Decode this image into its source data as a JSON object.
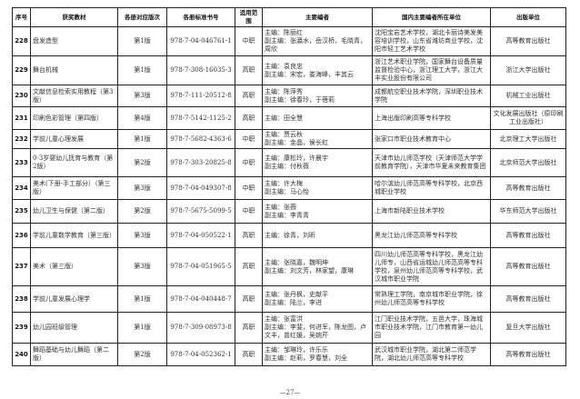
{
  "headers": [
    "序号",
    "获奖教材",
    "各册对应版次",
    "各册标准书号",
    "适用范围",
    "主要编者",
    "国内主要编者所在单位",
    "出版单位"
  ],
  "rows": [
    {
      "no": "228",
      "title": "盘发造型",
      "edition": "第1版",
      "isbn": "978-7-04-046761-1",
      "scope": "中职",
      "editors": [
        "主编：陈丽红",
        "副主编：张瀛水，岳汉桥，毛晓青，周欣"
      ],
      "units": "沈阳宝岩艺术学校，湖北卡丽诗美发美容培训学校，山东省潍坊商业学校，沈阳市轻工艺术学校",
      "publisher": "高等教育出版社"
    },
    {
      "no": "229",
      "title": "舞台机械",
      "edition": "第1版",
      "isbn": "978-7-308-16035-3",
      "scope": "高职",
      "editors": [
        "主编：袁良忠",
        "副主编：宋宏，娄海峰，丰其云"
      ],
      "units": "浙江艺术职业学院，国家舞台设备质量监督检验中心，浙江理工大学，浙江大丰实业股份有限公司",
      "publisher": "浙江大学出版社"
    },
    {
      "no": "230",
      "title": "文献信息检索实用教程（第3版）",
      "edition": "第3版",
      "isbn": "978-7-111-20512-8",
      "scope": "高职",
      "editors": [
        "主编：陈萍秀",
        "副主编：徐春玲，于蓓莉"
      ],
      "units": "成都航空职业技术学院，深圳职业技术学院",
      "publisher": "机械工业出版社"
    },
    {
      "no": "231",
      "title": "印刷色彩管理（第四版）",
      "edition": "第4版",
      "isbn": "978-7-5142-1125-2",
      "scope": "高职",
      "editors": [
        "主编：田全慧"
      ],
      "units": "上海出版印刷高等专科学校",
      "publisher": "文化发展出版社（原印刷工业出版社）"
    },
    {
      "no": "232",
      "title": "学前儿童心理发展",
      "edition": "第1版",
      "isbn": "978-7-5682-4363-6",
      "scope": "中职",
      "editors": [
        "主编：贾云秋",
        "副主编：金晶，侯长虹"
      ],
      "units": "张家口市职业技术教育中心",
      "publisher": "北京理工大学出版社"
    },
    {
      "no": "233",
      "title": "0-3岁婴幼儿抚育与教育（第2版）",
      "edition": "第2版",
      "isbn": "978-7-303-20825-8",
      "scope": "中职",
      "editors": [
        "主编：康松玲，许晨宇",
        "副主编：付秋薇"
      ],
      "units": "天津市幼儿师范学校（天津师范大学学前教育学院），天津市华夏未来教育集团",
      "publisher": "北京师范大学出版社"
    },
    {
      "no": "234",
      "title": "美术(下册·手工部分）（第三版）",
      "edition": "第3版",
      "isbn": "978-7-04-049307-8",
      "scope": "中职",
      "editors": [
        "主编：许大梅",
        "副主编：马心怡"
      ],
      "units": "哈尔滨幼儿师范高等专科学校，北京西城职业学校",
      "publisher": "高等教育出版社"
    },
    {
      "no": "235",
      "title": "幼儿卫生与保健（第二版）",
      "edition": "第2版",
      "isbn": "978-7-5675-5099-5",
      "scope": "中职",
      "editors": [
        "主编：张薇",
        "副主编：李青青"
      ],
      "units": "上海市新陆职业技术学校",
      "publisher": "华东师范大学出版社"
    },
    {
      "no": "236",
      "title": "学前儿童数学教育（第三版）",
      "edition": "第3版",
      "isbn": "978-7-04-050522-1",
      "scope": "高职",
      "editors": [
        "主编：徐青，刘昕"
      ],
      "units": "黑龙江幼儿师范高等专科学校",
      "publisher": "高等教育出版社"
    },
    {
      "no": "237",
      "title": "美术（第三版）",
      "edition": "第3版",
      "isbn": "978-7-04-051965-5",
      "scope": "高职",
      "editors": [
        "主编：张晓嘉，魏明坤",
        "副主编：刘文芳，林家望，康琳"
      ],
      "units": "四川幼儿师范高等专科学校，黑龙江幼儿师专，山西省运城幼儿师范高等专科学校，泉州幼儿师范高等专科学校，武汉城市职业学院",
      "publisher": "高等教育出版社"
    },
    {
      "no": "238",
      "title": "学前儿童发展心理学",
      "edition": "第1版",
      "isbn": "978-7-04-040448-7",
      "scope": "高职",
      "editors": [
        "主编：张丹枫，史献平",
        "副主编：陆兰，李进"
      ],
      "units": "常熟理工学院，南京城市职业学院，徐州幼儿师范高等专科学校",
      "publisher": "高等教育出版社"
    },
    {
      "no": "239",
      "title": "幼儿园班级管理",
      "edition": "第1版",
      "isbn": "978-7-309-08973-8",
      "scope": "高职",
      "editors": [
        "主编：张富洪",
        "副主编：李斐，何进军，陈龙图，卢文丰，曾红媛，吴婉芹"
      ],
      "units": "江门职业技术学院，五邑大学，珠海城市职业技术学院，江门市教育第一幼儿园",
      "publisher": "复旦大学出版社"
    },
    {
      "no": "240",
      "title": "舞蹈基础与幼儿舞蹈（第二版）",
      "edition": "第2版",
      "isbn": "978-7-04-052362-1",
      "scope": "高职",
      "editors": [
        "主编：邹琳玲，许乐乐",
        "副主编：赵莉，罗春慧，刘全"
      ],
      "units": "武汉城市职业学院，湖北第二师范学院，湖北幼儿师范高等专科学校",
      "publisher": "高等教育出版社"
    }
  ],
  "page_number": "—27—"
}
